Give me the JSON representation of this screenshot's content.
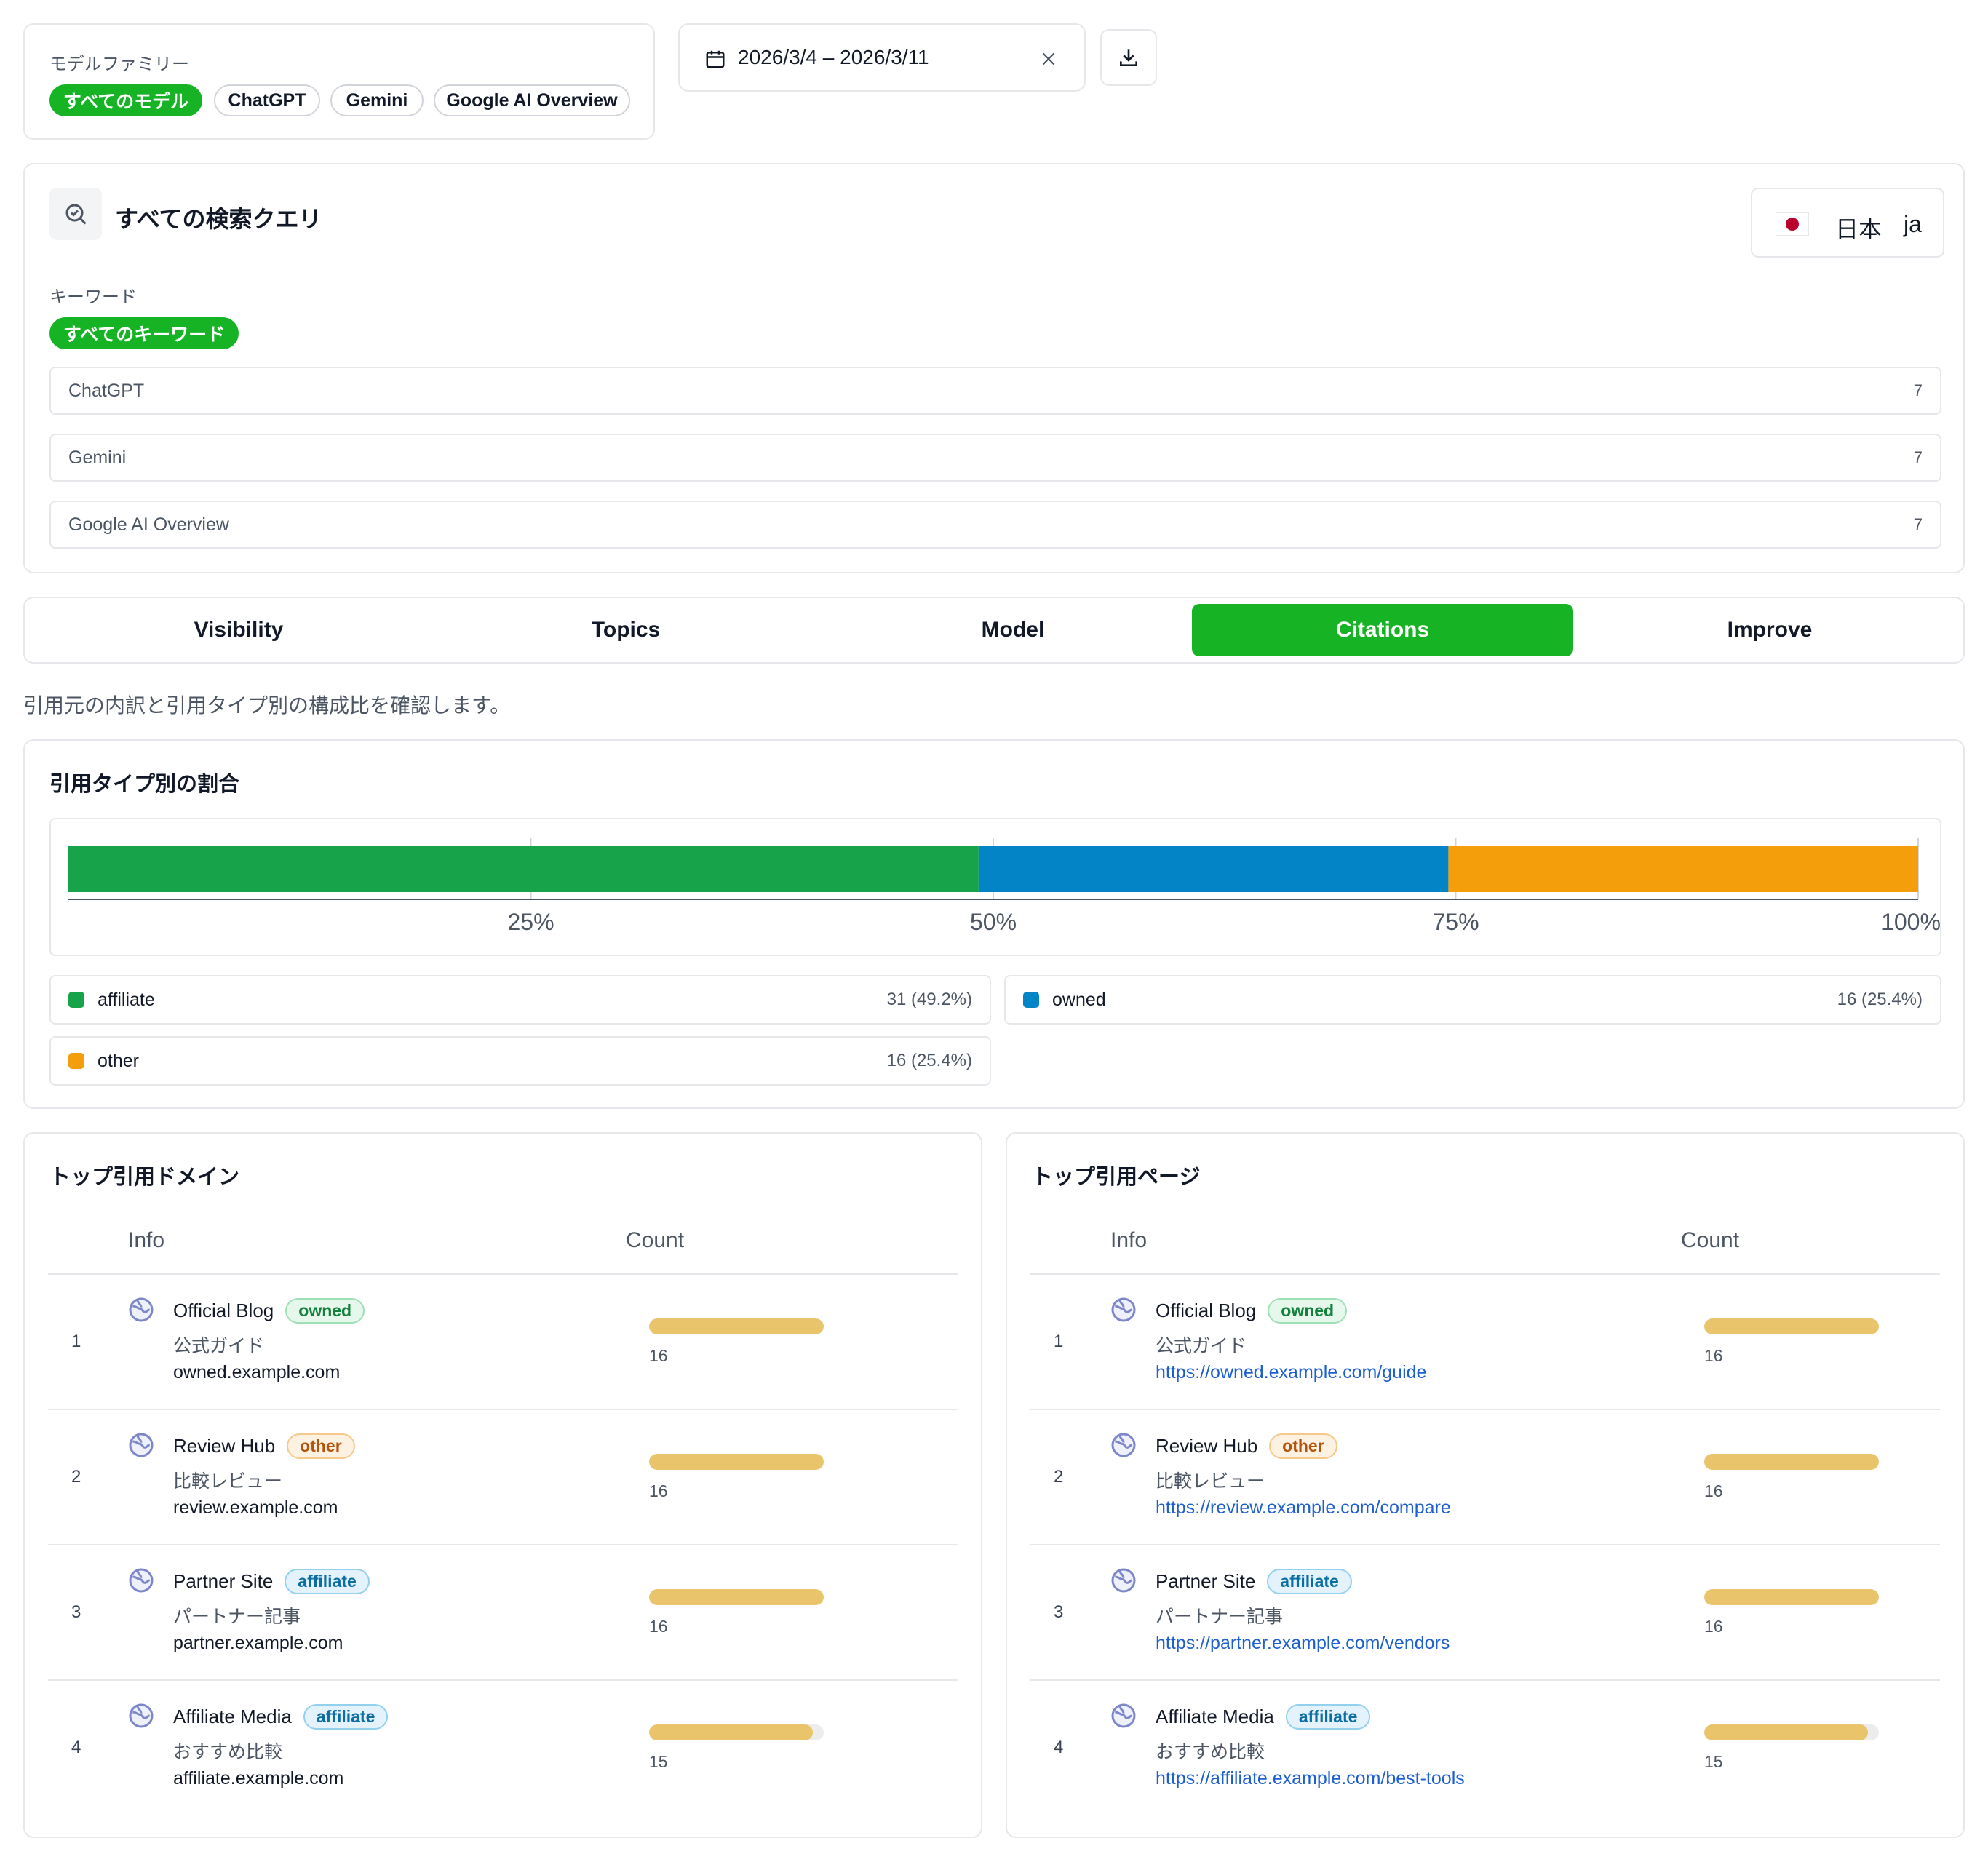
{
  "model_family": {
    "label": "モデルファミリー",
    "chips": [
      "すべてのモデル",
      "ChatGPT",
      "Gemini",
      "Google AI Overview"
    ],
    "active_index": 0
  },
  "date_range": {
    "value": "2026/3/4 – 2026/3/11"
  },
  "query": {
    "title": "すべての検索クエリ",
    "country": {
      "name": "日本",
      "lang": "ja"
    },
    "keyword_label": "キーワード",
    "keyword_chip": "すべてのキーワード",
    "rows": [
      {
        "label": "ChatGPT",
        "count": "7"
      },
      {
        "label": "Gemini",
        "count": "7"
      },
      {
        "label": "Google AI Overview",
        "count": "7"
      }
    ]
  },
  "tabs": [
    "Visibility",
    "Topics",
    "Model",
    "Citations",
    "Improve"
  ],
  "active_tab": "Citations",
  "description": "引用元の内訳と引用タイプ別の構成比を確認します。",
  "citation_type": {
    "title": "引用タイプ別の割合",
    "chart_data": {
      "type": "bar",
      "orientation": "horizontal-stacked-100",
      "x_ticks": [
        "25%",
        "50%",
        "75%",
        "100%"
      ],
      "xlim": [
        0,
        100
      ],
      "series": [
        {
          "name": "affiliate",
          "value": 31,
          "percent": 49.2,
          "color": "#16a34a"
        },
        {
          "name": "owned",
          "value": 16,
          "percent": 25.4,
          "color": "#0284c7"
        },
        {
          "name": "other",
          "value": 16,
          "percent": 25.4,
          "color": "#f59e0b"
        }
      ]
    },
    "legend": [
      {
        "name": "affiliate",
        "value": "31 (49.2%)",
        "color": "#16a34a"
      },
      {
        "name": "owned",
        "value": "16 (25.4%)",
        "color": "#0284c7"
      },
      {
        "name": "other",
        "value": "16 (25.4%)",
        "color": "#f59e0b"
      }
    ]
  },
  "top_domains": {
    "title": "トップ引用ドメイン",
    "col_info": "Info",
    "col_count": "Count",
    "max": 16,
    "rows": [
      {
        "rank": "1",
        "name": "Official Blog",
        "badge": "owned",
        "sub": "公式ガイド",
        "addr": "owned.example.com",
        "count": 16
      },
      {
        "rank": "2",
        "name": "Review Hub",
        "badge": "other",
        "sub": "比較レビュー",
        "addr": "review.example.com",
        "count": 16
      },
      {
        "rank": "3",
        "name": "Partner Site",
        "badge": "affiliate",
        "sub": "パートナー記事",
        "addr": "partner.example.com",
        "count": 16
      },
      {
        "rank": "4",
        "name": "Affiliate Media",
        "badge": "affiliate",
        "sub": "おすすめ比較",
        "addr": "affiliate.example.com",
        "count": 15
      }
    ]
  },
  "top_pages": {
    "title": "トップ引用ページ",
    "col_info": "Info",
    "col_count": "Count",
    "max": 16,
    "rows": [
      {
        "rank": "1",
        "name": "Official Blog",
        "badge": "owned",
        "sub": "公式ガイド",
        "addr": "https://owned.example.com/guide",
        "count": 16
      },
      {
        "rank": "2",
        "name": "Review Hub",
        "badge": "other",
        "sub": "比較レビュー",
        "addr": "https://review.example.com/compare",
        "count": 16
      },
      {
        "rank": "3",
        "name": "Partner Site",
        "badge": "affiliate",
        "sub": "パートナー記事",
        "addr": "https://partner.example.com/vendors",
        "count": 16
      },
      {
        "rank": "4",
        "name": "Affiliate Media",
        "badge": "affiliate",
        "sub": "おすすめ比較",
        "addr": "https://affiliate.example.com/best-tools",
        "count": 15
      }
    ]
  }
}
